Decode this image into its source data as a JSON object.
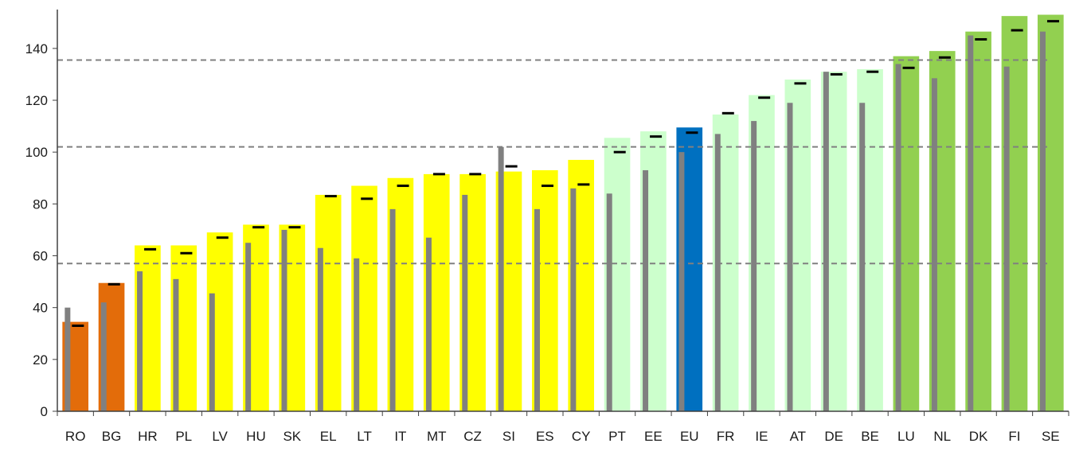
{
  "chart_data": {
    "type": "bar",
    "title": "",
    "xlabel": "",
    "ylabel": "",
    "ylim": [
      0,
      155
    ],
    "yticks": [
      0,
      20,
      40,
      60,
      80,
      100,
      120,
      140
    ],
    "grid": false,
    "legend": "none",
    "reference_lines": [
      57,
      102,
      135.5
    ],
    "categories": [
      "RO",
      "BG",
      "HR",
      "PL",
      "LV",
      "HU",
      "SK",
      "EL",
      "LT",
      "IT",
      "MT",
      "CZ",
      "SI",
      "ES",
      "CY",
      "PT",
      "EE",
      "EU",
      "FR",
      "IE",
      "AT",
      "DE",
      "BE",
      "LU",
      "NL",
      "DK",
      "FI",
      "SE"
    ],
    "group": [
      "orange",
      "orange",
      "yellow",
      "yellow",
      "yellow",
      "yellow",
      "yellow",
      "yellow",
      "yellow",
      "yellow",
      "yellow",
      "yellow",
      "yellow",
      "yellow",
      "yellow",
      "lightgreen",
      "lightgreen",
      "blue",
      "lightgreen",
      "lightgreen",
      "lightgreen",
      "lightgreen",
      "lightgreen",
      "green",
      "green",
      "green",
      "green",
      "green"
    ],
    "series": [
      {
        "values": [
          34.5,
          49.5,
          64,
          64,
          69,
          72,
          72,
          83.5,
          87,
          90,
          91.5,
          91.5,
          92.5,
          93,
          97,
          105.5,
          108,
          109.5,
          114.5,
          122,
          128,
          131,
          132,
          137,
          139,
          146.5,
          152.5,
          153
        ]
      },
      {
        "values": [
          40,
          42,
          54,
          51,
          45.5,
          65,
          70,
          63,
          59,
          78,
          67,
          83.5,
          102,
          78,
          86,
          84,
          93,
          100,
          107,
          112,
          119,
          131,
          119,
          134,
          128.5,
          145,
          133,
          146.5
        ]
      },
      {
        "values": [
          33,
          49,
          62.5,
          61,
          67,
          71,
          71,
          83,
          82,
          87,
          91.5,
          91.5,
          94.5,
          87,
          87.5,
          100,
          106,
          107.5,
          115,
          121,
          126.5,
          130,
          131,
          132.5,
          136.5,
          143.5,
          147,
          150.5
        ]
      }
    ],
    "colors": {
      "orange": "#e36c0a",
      "yellow": "#ffff00",
      "lightgreen": "#ccffcc",
      "blue": "#0070c0",
      "green": "#92d050",
      "inner_bar": "#808080",
      "marker": "#000000",
      "axis": "#404040",
      "reference_line": "#808080"
    }
  }
}
